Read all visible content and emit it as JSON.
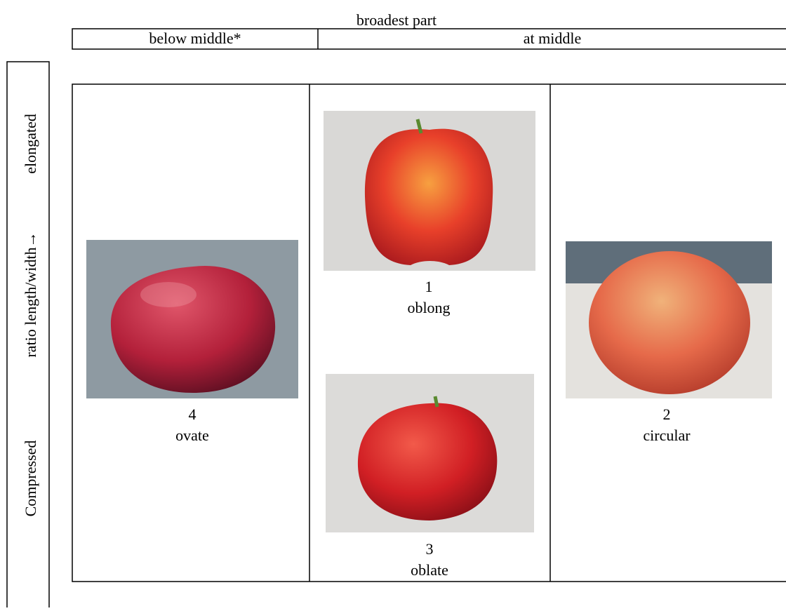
{
  "header": {
    "title": "broadest part",
    "columns": [
      "below middle*",
      "at middle"
    ]
  },
  "row_axis": {
    "low": "Compressed",
    "middle": "ratio length/width→",
    "high": "elongated"
  },
  "items": [
    {
      "number": "4",
      "label": "ovate"
    },
    {
      "number": "1",
      "label": "oblong"
    },
    {
      "number": "3",
      "label": "oblate"
    },
    {
      "number": "2",
      "label": "circular"
    }
  ]
}
